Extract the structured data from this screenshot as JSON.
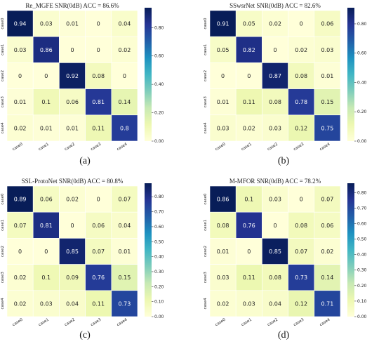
{
  "chart_data": [
    {
      "type": "heatmap",
      "title": "Re_MGFE SNR(0dB) ACC = 86.6%",
      "caption": "(a)",
      "x_categories": [
        "case0",
        "case1",
        "case2",
        "case3",
        "case4"
      ],
      "y_categories": [
        "case0",
        "case1",
        "case2",
        "case3",
        "case4"
      ],
      "values": [
        [
          0.94,
          0.03,
          0.01,
          0,
          0.04
        ],
        [
          0.03,
          0.86,
          0,
          0,
          0.02
        ],
        [
          0,
          0,
          0.92,
          0.08,
          0
        ],
        [
          0.01,
          0.1,
          0.06,
          0.81,
          0.14
        ],
        [
          0.02,
          0.01,
          0.01,
          0.11,
          0.8
        ]
      ],
      "colorbar_ticks": [
        "0.00",
        "0.20",
        "0.40",
        "0.60",
        "0.80"
      ],
      "colorbar_range": [
        0,
        0.94
      ]
    },
    {
      "type": "heatmap",
      "title": "SSwsrNet SNR(0dB) ACC = 82.6%",
      "caption": "(b)",
      "x_categories": [
        "case0",
        "case1",
        "case2",
        "case3",
        "case4"
      ],
      "y_categories": [
        "case0",
        "case1",
        "case2",
        "case3",
        "case4"
      ],
      "values": [
        [
          0.91,
          0.05,
          0.02,
          0,
          0.06
        ],
        [
          0.05,
          0.82,
          0,
          0.02,
          0.03
        ],
        [
          0,
          0,
          0.87,
          0.08,
          0.01
        ],
        [
          0.01,
          0.11,
          0.08,
          0.78,
          0.15
        ],
        [
          0.03,
          0.02,
          0.03,
          0.12,
          0.75
        ]
      ],
      "colorbar_ticks": [
        "0.00",
        "0.20",
        "0.40",
        "0.60",
        "0.80"
      ],
      "colorbar_range": [
        0,
        0.91
      ]
    },
    {
      "type": "heatmap",
      "title": "SSL-ProtoNet SNR(0dB) ACC = 80.8%",
      "caption": "(c)",
      "x_categories": [
        "case0",
        "case1",
        "case2",
        "case3",
        "case4"
      ],
      "y_categories": [
        "case0",
        "case1",
        "case2",
        "case3",
        "case4"
      ],
      "values": [
        [
          0.89,
          0.06,
          0.02,
          0,
          0.07
        ],
        [
          0.07,
          0.81,
          0,
          0.06,
          0.04
        ],
        [
          0,
          0,
          0.85,
          0.07,
          0.01
        ],
        [
          0.02,
          0.1,
          0.09,
          0.76,
          0.15
        ],
        [
          0.02,
          0.03,
          0.04,
          0.11,
          0.73
        ]
      ],
      "colorbar_ticks": [
        "0.00",
        "0.10",
        "0.20",
        "0.30",
        "0.40",
        "0.50",
        "0.60",
        "0.70",
        "0.80"
      ],
      "colorbar_range": [
        0,
        0.89
      ]
    },
    {
      "type": "heatmap",
      "title": "M-MFOR SNR(0dB) ACC = 78.2%",
      "caption": "(d)",
      "x_categories": [
        "case0",
        "case1",
        "case2",
        "case3",
        "case4"
      ],
      "y_categories": [
        "case0",
        "case1",
        "case2",
        "case3",
        "case4"
      ],
      "values": [
        [
          0.86,
          0.1,
          0.03,
          0,
          0.07
        ],
        [
          0.08,
          0.76,
          0,
          0.08,
          0.06
        ],
        [
          0.01,
          0,
          0.85,
          0.07,
          0.02
        ],
        [
          0.03,
          0.11,
          0.08,
          0.73,
          0.14
        ],
        [
          0.02,
          0.03,
          0.04,
          0.12,
          0.71
        ]
      ],
      "colorbar_ticks": [
        "0.00",
        "0.10",
        "0.20",
        "0.30",
        "0.40",
        "0.50",
        "0.60",
        "0.70",
        "0.80"
      ],
      "colorbar_range": [
        0,
        0.86
      ]
    }
  ]
}
